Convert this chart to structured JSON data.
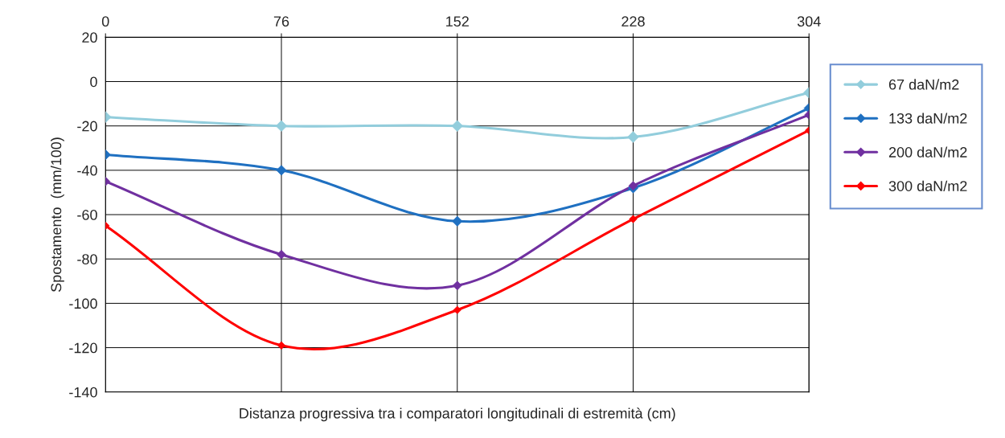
{
  "chart_data": {
    "type": "line",
    "xlabel": "Distanza progressiva tra i comparatori longitudinali di estremità (cm)",
    "ylabel": "Spostamento  (mm/100)",
    "x": [
      0,
      76,
      152,
      228,
      304
    ],
    "xlim": [
      0,
      304
    ],
    "xticks": [
      0,
      76,
      152,
      228,
      304
    ],
    "ylim": [
      -140,
      20
    ],
    "yticks": [
      -140,
      -120,
      -100,
      -80,
      -60,
      -40,
      -20,
      0,
      20
    ],
    "grid": true,
    "legend": "right",
    "marker": "diamond",
    "line_style": "solid",
    "series": [
      {
        "name": "67 daN/m2",
        "color": "#92cddc",
        "values": [
          -16,
          -20,
          -20,
          -25,
          -5
        ]
      },
      {
        "name": "133 daN/m2",
        "color": "#1f70c1",
        "values": [
          -33,
          -40,
          -63,
          -48,
          -12
        ]
      },
      {
        "name": "200 daN/m2",
        "color": "#7030a0",
        "values": [
          -45,
          -78,
          -92,
          -47,
          -15
        ]
      },
      {
        "name": "300 daN/m2",
        "color": "#ff0000",
        "values": [
          -65,
          -119,
          -103,
          -62,
          -22
        ]
      }
    ]
  }
}
